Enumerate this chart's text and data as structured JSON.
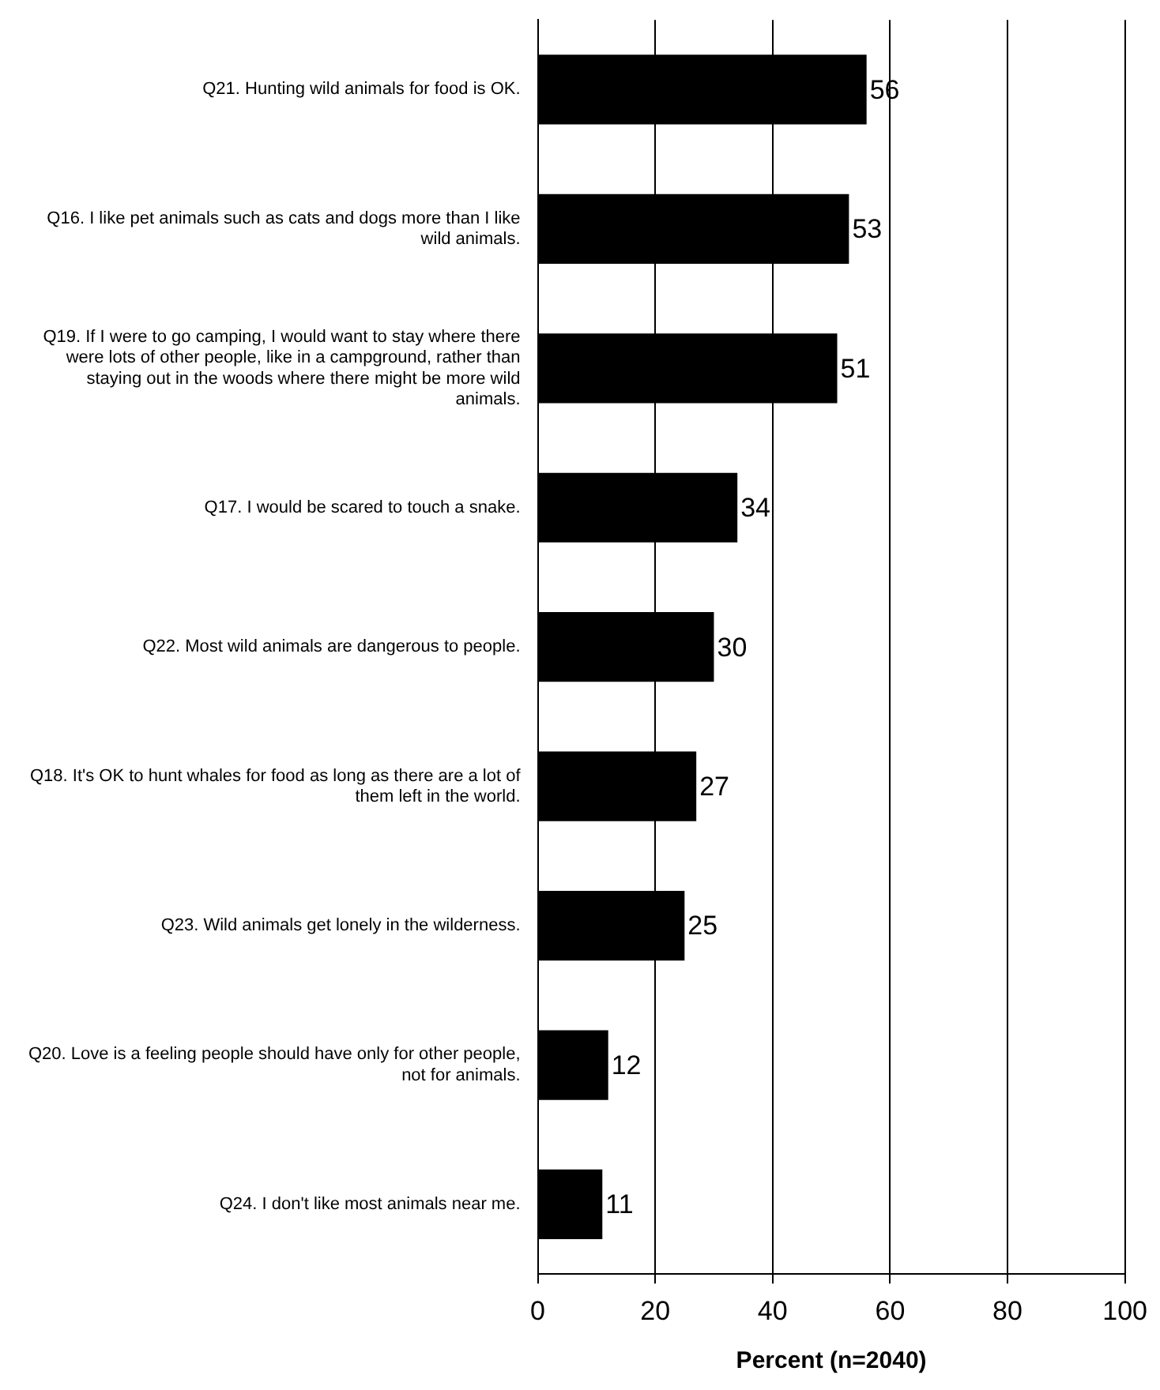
{
  "chart_data": {
    "type": "bar",
    "orientation": "horizontal",
    "xlabel": "Percent (n=2040)",
    "categories": [
      "Q21. Hunting wild animals for food is OK.",
      "Q16. I like pet animals such as cats and dogs more than I like wild animals.",
      "Q19. If I were to go camping, I would want to stay where there were lots of other people, like in a campground, rather than staying out in the woods where there might be more wild animals.",
      "Q17. I would be scared to touch a snake.",
      "Q22. Most wild animals are dangerous to people.",
      "Q18. It's OK to hunt whales for food as long as there are a lot of them left in the world.",
      "Q23. Wild animals get lonely in the wilderness.",
      "Q20. Love is a feeling people should have only for other people, not for animals.",
      "Q24. I don't like most animals near me."
    ],
    "values": [
      56,
      53,
      51,
      34,
      30,
      27,
      25,
      12,
      11
    ],
    "color": "#000000",
    "xlim": [
      0,
      100
    ],
    "xticks": [
      0,
      20,
      40,
      60,
      80,
      100
    ],
    "grid": "x",
    "data_labels": true,
    "legend": false
  }
}
